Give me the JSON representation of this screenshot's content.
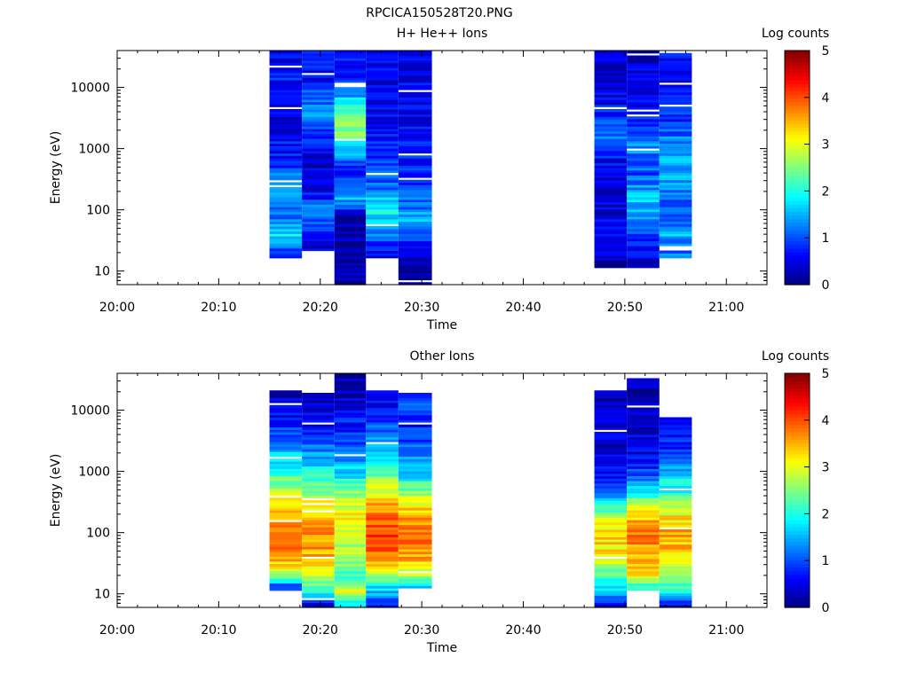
{
  "file_title": "RPCICA150528T20.PNG",
  "chart_data": [
    {
      "type": "heatmap",
      "title": "H+ He++ Ions",
      "xlabel": "Time",
      "ylabel": "Energy (eV)",
      "colorbar_label": "Log counts",
      "x_ticks": [
        "20:00",
        "20:10",
        "20:20",
        "20:30",
        "20:40",
        "20:50",
        "21:00"
      ],
      "x_range_minutes": [
        0,
        64
      ],
      "y_scale": "log",
      "y_ticks": [
        "10",
        "100",
        "1000",
        "10000"
      ],
      "y_range": [
        6,
        40000
      ],
      "colorbar_ticks": [
        "0",
        "1",
        "2",
        "3",
        "4",
        "5"
      ],
      "colorbar_range": [
        0,
        5
      ],
      "scans": [
        {
          "start": 15.0,
          "end": 18.2,
          "emin": 16,
          "emax": 40000,
          "profile": [
            [
              16,
              0.5
            ],
            [
              40,
              1.8
            ],
            [
              60,
              1.3
            ],
            [
              100,
              1.0
            ],
            [
              250,
              1.6
            ],
            [
              700,
              0.7
            ],
            [
              3000,
              0.5
            ],
            [
              15000,
              0.7
            ],
            [
              40000,
              0.6
            ]
          ]
        },
        {
          "start": 18.2,
          "end": 21.4,
          "emin": 22,
          "emax": 40000,
          "profile": [
            [
              22,
              0.4
            ],
            [
              60,
              1.0
            ],
            [
              100,
              1.3
            ],
            [
              200,
              0.5
            ],
            [
              700,
              0.4
            ],
            [
              4000,
              1.4
            ],
            [
              15000,
              0.6
            ],
            [
              40000,
              0.6
            ]
          ]
        },
        {
          "start": 21.4,
          "end": 24.5,
          "emin": 6,
          "emax": 40000,
          "profile": [
            [
              6,
              0.1
            ],
            [
              30,
              0.3
            ],
            [
              80,
              0.3
            ],
            [
              150,
              1.5
            ],
            [
              500,
              0.6
            ],
            [
              1500,
              2.3
            ],
            [
              2500,
              2.6
            ],
            [
              5000,
              1.9
            ],
            [
              15000,
              0.8
            ],
            [
              40000,
              0.6
            ]
          ]
        },
        {
          "start": 24.5,
          "end": 27.7,
          "emin": 16,
          "emax": 40000,
          "profile": [
            [
              16,
              0.4
            ],
            [
              40,
              1.2
            ],
            [
              100,
              1.9
            ],
            [
              300,
              1.0
            ],
            [
              1000,
              0.7
            ],
            [
              5000,
              0.5
            ],
            [
              20000,
              0.5
            ],
            [
              40000,
              0.4
            ]
          ]
        },
        {
          "start": 27.7,
          "end": 31.0,
          "emin": 6,
          "emax": 40000,
          "profile": [
            [
              6,
              0.1
            ],
            [
              30,
              0.7
            ],
            [
              60,
              1.7
            ],
            [
              100,
              1.3
            ],
            [
              500,
              0.8
            ],
            [
              3000,
              0.5
            ],
            [
              40000,
              0.6
            ]
          ]
        },
        {
          "start": 47.0,
          "end": 50.2,
          "emin": 11,
          "emax": 40000,
          "profile": [
            [
              11,
              0.2
            ],
            [
              50,
              0.5
            ],
            [
              150,
              0.4
            ],
            [
              800,
              0.7
            ],
            [
              1800,
              1.2
            ],
            [
              6000,
              0.5
            ],
            [
              40000,
              0.5
            ]
          ]
        },
        {
          "start": 50.2,
          "end": 53.4,
          "emin": 11,
          "emax": 40000,
          "profile": [
            [
              11,
              0.2
            ],
            [
              50,
              1.0
            ],
            [
              150,
              1.6
            ],
            [
              400,
              1.0
            ],
            [
              1000,
              1.3
            ],
            [
              6000,
              0.5
            ],
            [
              40000,
              0.4
            ]
          ]
        },
        {
          "start": 53.4,
          "end": 56.6,
          "emin": 16,
          "emax": 40000,
          "profile": [
            [
              16,
              1.1
            ],
            [
              40,
              1.5
            ],
            [
              100,
              1.0
            ],
            [
              300,
              1.3
            ],
            [
              700,
              1.6
            ],
            [
              3000,
              0.8
            ],
            [
              20000,
              0.5
            ],
            [
              40000,
              0.6
            ]
          ]
        }
      ]
    },
    {
      "type": "heatmap",
      "title": "Other Ions",
      "xlabel": "Time",
      "ylabel": "Energy (eV)",
      "colorbar_label": "Log counts",
      "x_ticks": [
        "20:00",
        "20:10",
        "20:20",
        "20:30",
        "20:40",
        "20:50",
        "21:00"
      ],
      "x_range_minutes": [
        0,
        64
      ],
      "y_scale": "log",
      "y_ticks": [
        "10",
        "100",
        "1000",
        "10000"
      ],
      "y_range": [
        6,
        40000
      ],
      "colorbar_ticks": [
        "0",
        "1",
        "2",
        "3",
        "4",
        "5"
      ],
      "colorbar_range": [
        0,
        5
      ],
      "scans": [
        {
          "start": 15.0,
          "end": 18.2,
          "emin": 11,
          "emax": 22000,
          "profile": [
            [
              11,
              0.8
            ],
            [
              15,
              1.3
            ],
            [
              20,
              2.8
            ],
            [
              30,
              3.3
            ],
            [
              60,
              3.7
            ],
            [
              100,
              3.8
            ],
            [
              200,
              3.5
            ],
            [
              400,
              3.0
            ],
            [
              800,
              2.2
            ],
            [
              2000,
              1.5
            ],
            [
              5000,
              0.9
            ],
            [
              10000,
              0.5
            ],
            [
              22000,
              0.3
            ]
          ]
        },
        {
          "start": 18.2,
          "end": 21.4,
          "emin": 6,
          "emax": 20000,
          "profile": [
            [
              6,
              0.1
            ],
            [
              11,
              2.0
            ],
            [
              20,
              2.8
            ],
            [
              40,
              3.5
            ],
            [
              100,
              3.7
            ],
            [
              200,
              3.4
            ],
            [
              500,
              2.6
            ],
            [
              1000,
              1.8
            ],
            [
              3000,
              1.0
            ],
            [
              8000,
              0.5
            ],
            [
              20000,
              0.3
            ]
          ]
        },
        {
          "start": 21.4,
          "end": 24.5,
          "emin": 6,
          "emax": 40000,
          "profile": [
            [
              6,
              1.6
            ],
            [
              11,
              3.0
            ],
            [
              20,
              2.3
            ],
            [
              40,
              2.6
            ],
            [
              100,
              2.9
            ],
            [
              200,
              3.2
            ],
            [
              500,
              2.4
            ],
            [
              1000,
              1.7
            ],
            [
              3000,
              1.0
            ],
            [
              10000,
              0.5
            ],
            [
              40000,
              0.2
            ]
          ]
        },
        {
          "start": 24.5,
          "end": 27.7,
          "emin": 6,
          "emax": 22000,
          "profile": [
            [
              6,
              0.6
            ],
            [
              11,
              1.6
            ],
            [
              20,
              2.5
            ],
            [
              40,
              3.9
            ],
            [
              100,
              4.1
            ],
            [
              200,
              3.8
            ],
            [
              400,
              3.2
            ],
            [
              1000,
              2.2
            ],
            [
              3000,
              1.6
            ],
            [
              8000,
              0.8
            ],
            [
              22000,
              0.3
            ]
          ]
        },
        {
          "start": 27.7,
          "end": 31.0,
          "emin": 11,
          "emax": 19000,
          "profile": [
            [
              11,
              1.2
            ],
            [
              20,
              2.8
            ],
            [
              40,
              3.6
            ],
            [
              100,
              3.9
            ],
            [
              200,
              3.5
            ],
            [
              400,
              2.8
            ],
            [
              800,
              1.8
            ],
            [
              2000,
              1.2
            ],
            [
              6000,
              0.7
            ],
            [
              19000,
              1.0
            ]
          ]
        },
        {
          "start": 47.0,
          "end": 50.2,
          "emin": 6,
          "emax": 22000,
          "profile": [
            [
              6,
              0.3
            ],
            [
              11,
              1.5
            ],
            [
              20,
              2.2
            ],
            [
              40,
              3.1
            ],
            [
              100,
              3.4
            ],
            [
              200,
              2.6
            ],
            [
              400,
              1.4
            ],
            [
              800,
              0.8
            ],
            [
              2000,
              0.4
            ],
            [
              22000,
              0.2
            ]
          ]
        },
        {
          "start": 50.2,
          "end": 53.4,
          "emin": 11,
          "emax": 32000,
          "profile": [
            [
              11,
              1.6
            ],
            [
              20,
              3.1
            ],
            [
              40,
              3.5
            ],
            [
              100,
              3.8
            ],
            [
              200,
              3.3
            ],
            [
              400,
              2.2
            ],
            [
              800,
              1.0
            ],
            [
              2000,
              0.5
            ],
            [
              32000,
              0.2
            ]
          ]
        },
        {
          "start": 53.4,
          "end": 56.6,
          "emin": 6,
          "emax": 8000,
          "profile": [
            [
              6,
              0.2
            ],
            [
              11,
              1.8
            ],
            [
              20,
              2.6
            ],
            [
              40,
              3.3
            ],
            [
              100,
              3.6
            ],
            [
              200,
              3.1
            ],
            [
              400,
              2.2
            ],
            [
              1000,
              1.5
            ],
            [
              3000,
              0.7
            ],
            [
              8000,
              0.5
            ]
          ]
        }
      ]
    }
  ]
}
